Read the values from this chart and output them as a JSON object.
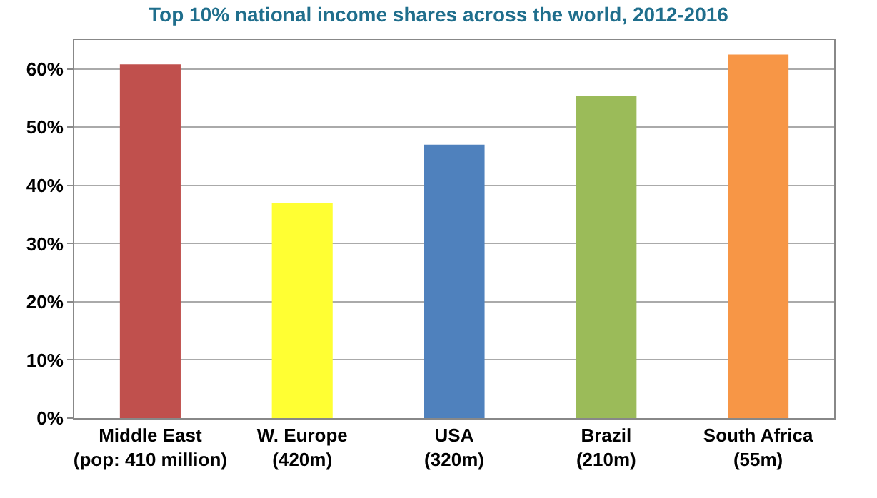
{
  "chart_data": {
    "type": "bar",
    "title": "Top 10% national income shares across the world, 2012-2016",
    "categories": [
      "Middle East\n(pop: 410 million)",
      "W. Europe\n(420m)",
      "USA\n(320m)",
      "Brazil\n(210m)",
      "South Africa\n(55m)"
    ],
    "values": [
      60.8,
      37.0,
      47.0,
      55.4,
      62.5
    ],
    "colors": [
      "#c0504d",
      "#ffff33",
      "#4f81bd",
      "#9bbb59",
      "#f79646"
    ],
    "ylim": [
      0,
      65
    ],
    "yticks": [
      {
        "value": 0,
        "label": "0%"
      },
      {
        "value": 10,
        "label": "10%"
      },
      {
        "value": 20,
        "label": "20%"
      },
      {
        "value": 30,
        "label": "30%"
      },
      {
        "value": 40,
        "label": "40%"
      },
      {
        "value": 50,
        "label": "50%"
      },
      {
        "value": 60,
        "label": "60%"
      }
    ],
    "grid": "y"
  }
}
